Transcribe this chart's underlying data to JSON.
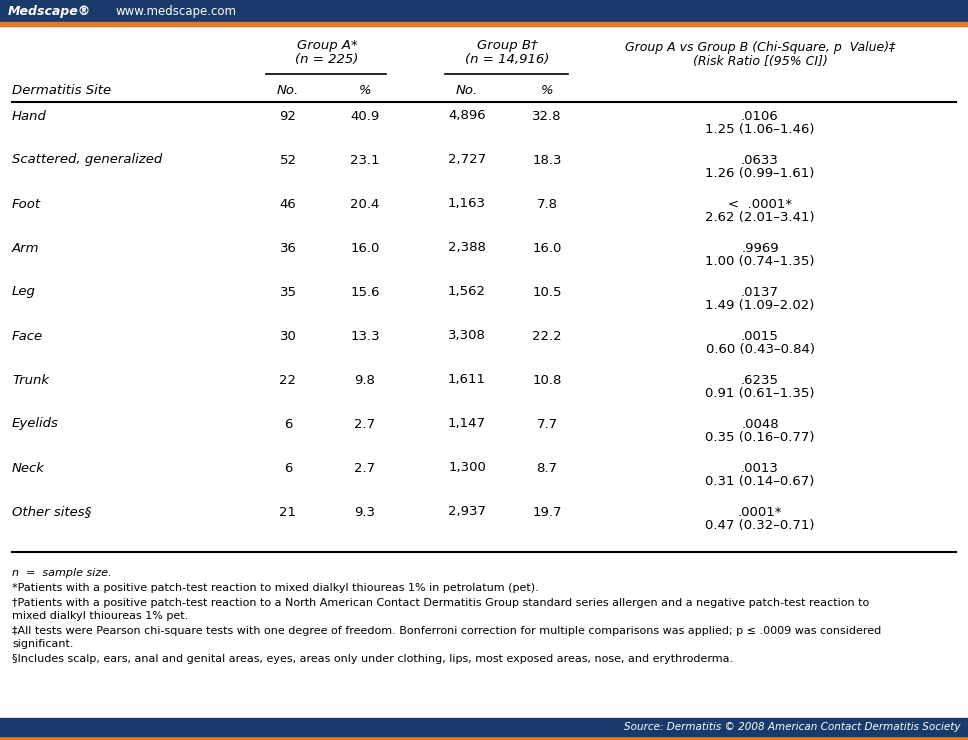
{
  "header_bar_color": "#1a3a6b",
  "orange_line_color": "#e87722",
  "bg_color": "#ffffff",
  "medscape_text": "Medscape®",
  "website_text": "www.medscape.com",
  "col_header_1": "Group A*",
  "col_header_1b": "(n = 225)",
  "col_header_2": "Group B†",
  "col_header_2b": "(n = 14,916)",
  "col_header_3": "Group A vs Group B (Chi-Square, p  Value)‡",
  "col_header_3b": "(Risk Ratio [(95% CI])",
  "col_subheader_site": "Dermatitis Site",
  "col_subheader_no1": "No.",
  "col_subheader_pct1": "%",
  "col_subheader_no2": "No.",
  "col_subheader_pct2": "%",
  "rows": [
    {
      "site": "Hand",
      "no_a": "92",
      "pct_a": "40.9",
      "no_b": "4,896",
      "pct_b": "32.8",
      "pval": ".0106",
      "rr": "1.25 (1.06–1.46)"
    },
    {
      "site": "Scattered, generalized",
      "no_a": "52",
      "pct_a": "23.1",
      "no_b": "2,727",
      "pct_b": "18.3",
      "pval": ".0633",
      "rr": "1.26 (0.99–1.61)"
    },
    {
      "site": "Foot",
      "no_a": "46",
      "pct_a": "20.4",
      "no_b": "1,163",
      "pct_b": "7.8",
      "pval": "<  .0001*",
      "rr": "2.62 (2.01–3.41)"
    },
    {
      "site": "Arm",
      "no_a": "36",
      "pct_a": "16.0",
      "no_b": "2,388",
      "pct_b": "16.0",
      "pval": ".9969",
      "rr": "1.00 (0.74–1.35)"
    },
    {
      "site": "Leg",
      "no_a": "35",
      "pct_a": "15.6",
      "no_b": "1,562",
      "pct_b": "10.5",
      "pval": ".0137",
      "rr": "1.49 (1.09–2.02)"
    },
    {
      "site": "Face",
      "no_a": "30",
      "pct_a": "13.3",
      "no_b": "3,308",
      "pct_b": "22.2",
      "pval": ".0015",
      "rr": "0.60 (0.43–0.84)"
    },
    {
      "site": "Trunk",
      "no_a": "22",
      "pct_a": "9.8",
      "no_b": "1,611",
      "pct_b": "10.8",
      "pval": ".6235",
      "rr": "0.91 (0.61–1.35)"
    },
    {
      "site": "Eyelids",
      "no_a": "6",
      "pct_a": "2.7",
      "no_b": "1,147",
      "pct_b": "7.7",
      "pval": ".0048",
      "rr": "0.35 (0.16–0.77)"
    },
    {
      "site": "Neck",
      "no_a": "6",
      "pct_a": "2.7",
      "no_b": "1,300",
      "pct_b": "8.7",
      "pval": ".0013",
      "rr": "0.31 (0.14–0.67)"
    },
    {
      "site": "Other sites§",
      "no_a": "21",
      "pct_a": "9.3",
      "no_b": "2,937",
      "pct_b": "19.7",
      "pval": ".0001*",
      "rr": "0.47 (0.32–0.71)"
    }
  ],
  "footnote_n": "n  =  sample size.",
  "footnote_star": "*Patients with a positive patch-test reaction to mixed dialkyl thioureas 1% in petrolatum (pet).",
  "footnote_dag": "†Patients with a positive patch-test reaction to a North American Contact Dermatitis Group standard series allergen and a negative patch-test reaction to\nmixed dialkyl thioureas 1% pet.",
  "footnote_ddag": "‡All tests were Pearson chi-square tests with one degree of freedom. Bonferroni correction for multiple comparisons was applied; p ≤ .0009 was considered\nsignificant.",
  "footnote_sec": "§Includes scalp, ears, anal and genital areas, eyes, areas only under clothing, lips, most exposed areas, nose, and erythroderma.",
  "source_text": "Source: Dermatitis © 2008 American Contact Dermatitis Society"
}
